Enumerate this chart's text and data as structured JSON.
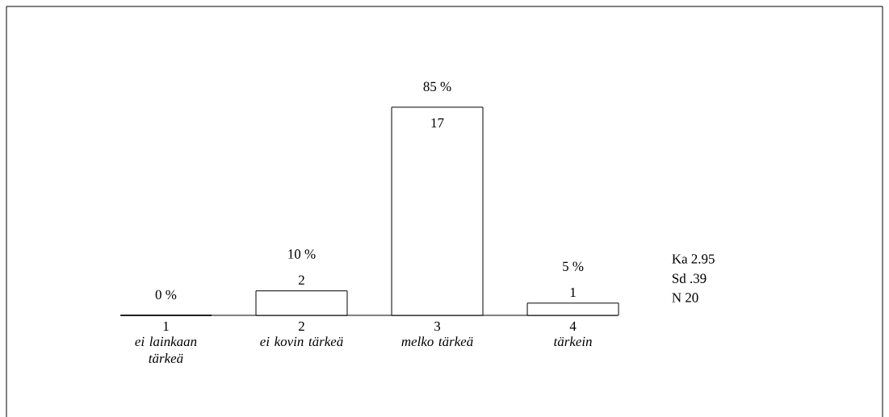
{
  "chart_data": {
    "type": "bar",
    "categories": [
      "1",
      "2",
      "3",
      "4"
    ],
    "values": [
      0,
      2,
      17,
      1
    ],
    "color": "#ffffff",
    "value_labels": [
      null,
      "2",
      "17",
      "1"
    ],
    "annotations": [
      {
        "text": "0 %",
        "x": "1",
        "y": 0
      },
      {
        "text": "10 %",
        "x": "2",
        "y": 2
      },
      {
        "text": "85 %",
        "x": "3",
        "y": 17
      },
      {
        "text": "5 %",
        "x": "4",
        "y": 1
      },
      "*ei lainkaan tärkeä*",
      "*ei kovin tärkeä*",
      "*melko tärkeä*",
      "*tärkein*",
      "Ka  2.95",
      "Sd  .39",
      "N    20"
    ]
  }
}
